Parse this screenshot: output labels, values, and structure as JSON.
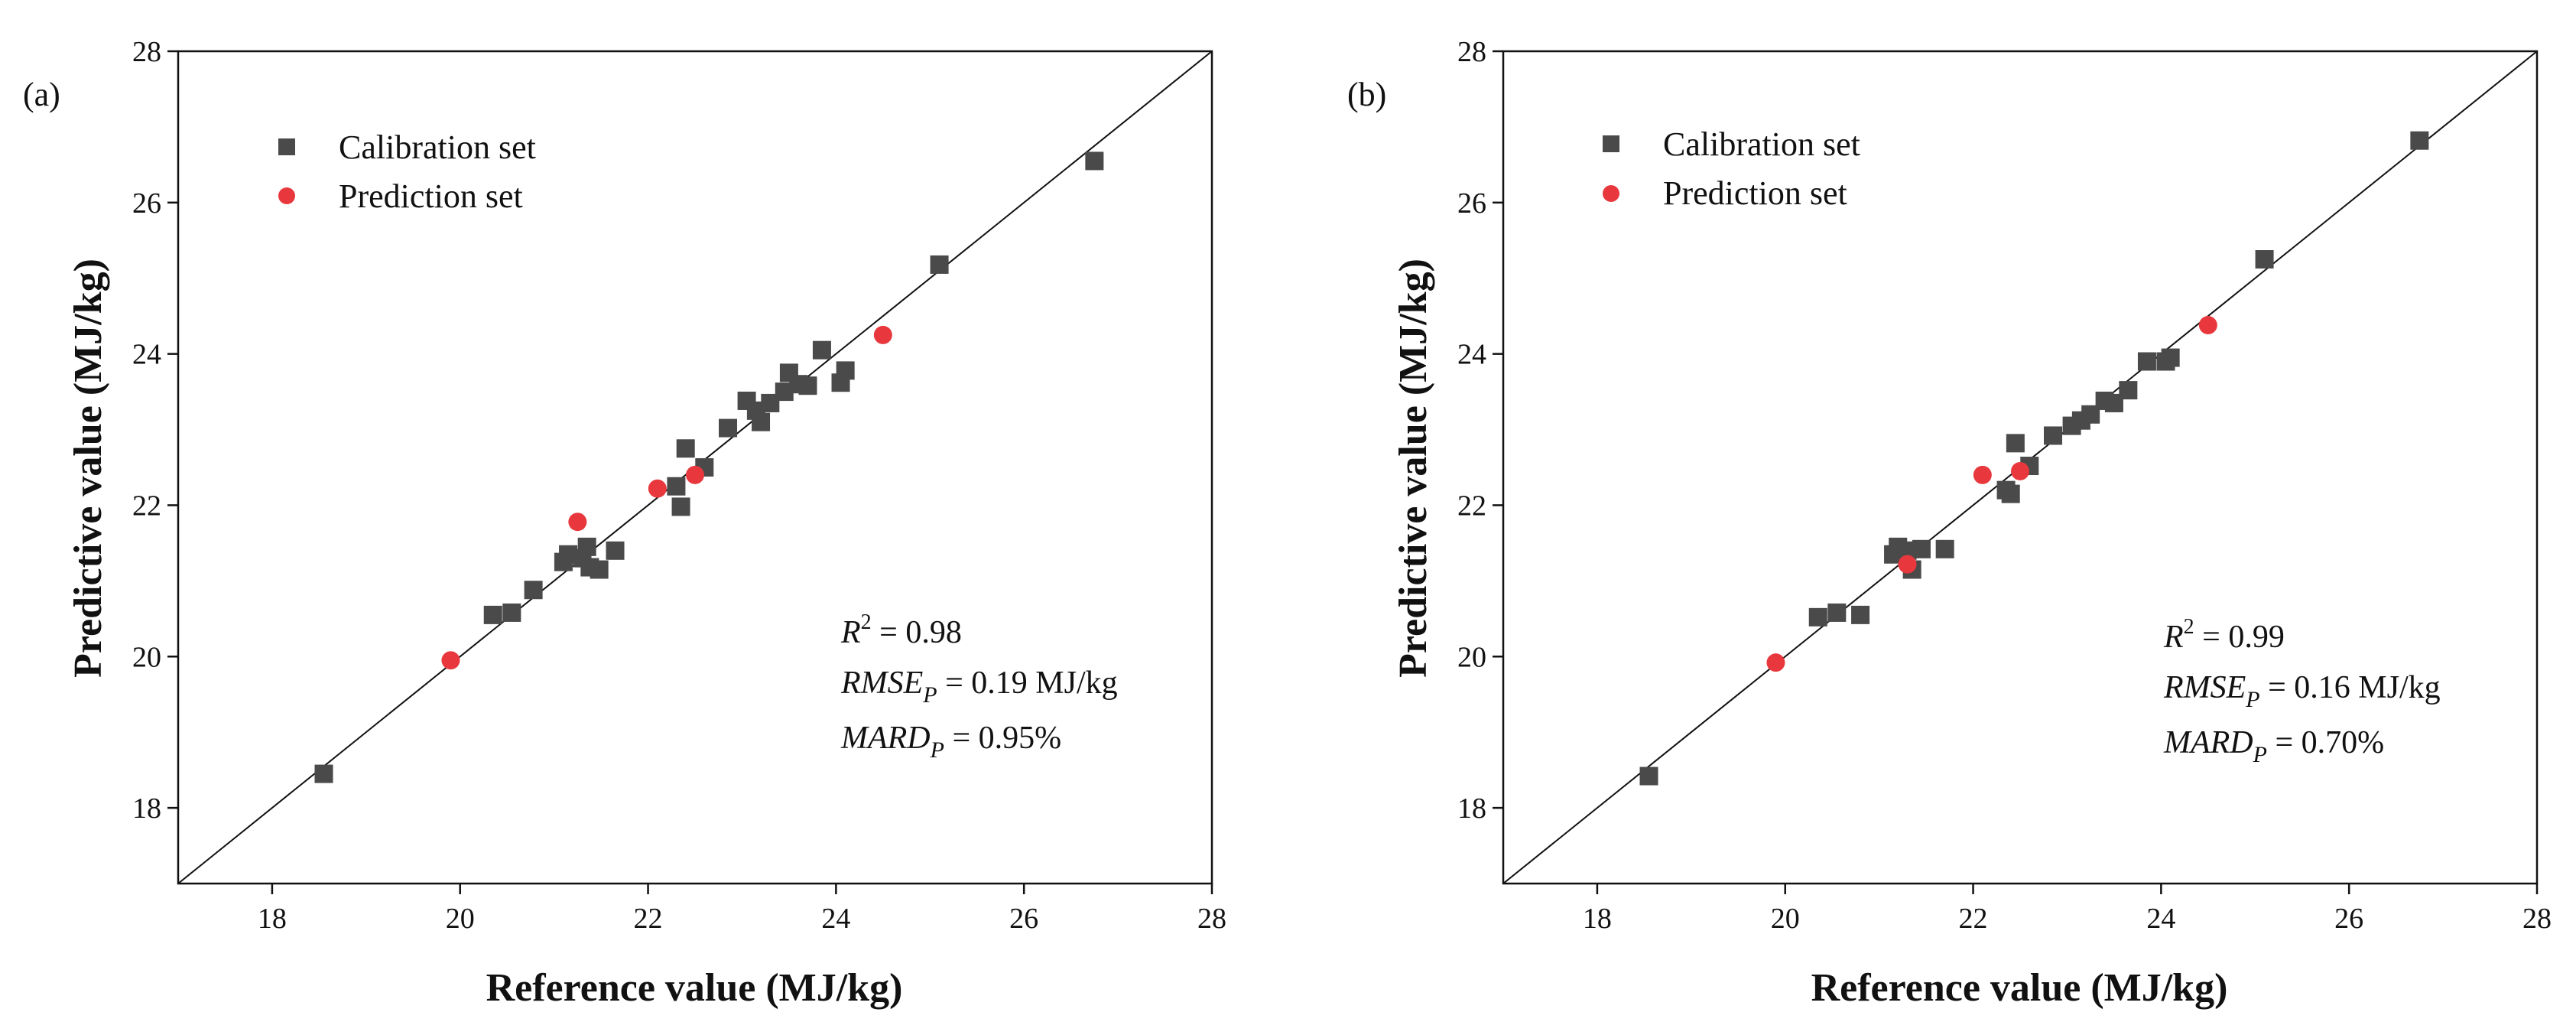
{
  "figure": {
    "panels": [
      {
        "label": "(a)",
        "legend": {
          "calibration": "Calibration set",
          "prediction": "Prediction set"
        },
        "stats": {
          "r2": {
            "symbol": "R",
            "sup": "2",
            "rest": " = 0.98"
          },
          "rmse": {
            "symbol": "RMSE",
            "sub": "P",
            "rest": " = 0.19 MJ/kg"
          },
          "mard": {
            "symbol": "MARD",
            "sub": "P",
            "rest": " = 0.95%"
          }
        }
      },
      {
        "label": "(b)",
        "legend": {
          "calibration": "Calibration set",
          "prediction": "Prediction set"
        },
        "stats": {
          "r2": {
            "symbol": "R",
            "sup": "2",
            "rest": " = 0.99"
          },
          "rmse": {
            "symbol": "RMSE",
            "sub": "P",
            "rest": " = 0.16 MJ/kg"
          },
          "mard": {
            "symbol": "MARD",
            "sub": "P",
            "rest": " = 0.70%"
          }
        }
      }
    ]
  },
  "colors": {
    "calibration": "#4a4a4a",
    "prediction": "#e8383d",
    "axis": "#111111",
    "line": "#111111"
  },
  "chart_data": [
    {
      "type": "scatter",
      "title": "(a)",
      "xlabel": "Reference value (MJ/kg)",
      "ylabel": "Predictive value (MJ/kg)",
      "xlim": [
        17,
        28
      ],
      "ylim": [
        17,
        28
      ],
      "xticks": [
        18,
        20,
        22,
        24,
        26,
        28
      ],
      "yticks": [
        18,
        20,
        22,
        24,
        26,
        28
      ],
      "reference_line": "y = x",
      "legend_position": "top-left",
      "series": [
        {
          "name": "Calibration set",
          "marker": "square",
          "points": [
            [
              18.55,
              18.45
            ],
            [
              20.35,
              20.55
            ],
            [
              20.55,
              20.58
            ],
            [
              20.78,
              20.88
            ],
            [
              21.1,
              21.25
            ],
            [
              21.15,
              21.35
            ],
            [
              21.3,
              21.3
            ],
            [
              21.35,
              21.45
            ],
            [
              21.38,
              21.18
            ],
            [
              21.48,
              21.15
            ],
            [
              21.65,
              21.4
            ],
            [
              22.3,
              22.25
            ],
            [
              22.35,
              21.98
            ],
            [
              22.4,
              22.75
            ],
            [
              22.6,
              22.5
            ],
            [
              22.85,
              23.02
            ],
            [
              23.05,
              23.38
            ],
            [
              23.15,
              23.25
            ],
            [
              23.2,
              23.1
            ],
            [
              23.3,
              23.35
            ],
            [
              23.45,
              23.5
            ],
            [
              23.5,
              23.75
            ],
            [
              23.6,
              23.6
            ],
            [
              23.7,
              23.58
            ],
            [
              23.85,
              24.05
            ],
            [
              24.05,
              23.62
            ],
            [
              24.1,
              23.78
            ],
            [
              25.1,
              25.18
            ],
            [
              26.75,
              26.55
            ]
          ]
        },
        {
          "name": "Prediction set",
          "marker": "circle",
          "points": [
            [
              19.9,
              19.95
            ],
            [
              21.25,
              21.78
            ],
            [
              22.1,
              22.22
            ],
            [
              22.5,
              22.4
            ],
            [
              24.5,
              24.25
            ]
          ]
        }
      ]
    },
    {
      "type": "scatter",
      "title": "(b)",
      "xlabel": "Reference value (MJ/kg)",
      "ylabel": "Predictive value (MJ/kg)",
      "xlim": [
        17,
        28
      ],
      "ylim": [
        17,
        28
      ],
      "xticks": [
        18,
        20,
        22,
        24,
        26,
        28
      ],
      "yticks": [
        18,
        20,
        22,
        24,
        26,
        28
      ],
      "reference_line": "y = x",
      "legend_position": "top-left",
      "series": [
        {
          "name": "Calibration set",
          "marker": "square",
          "points": [
            [
              18.55,
              18.42
            ],
            [
              20.35,
              20.52
            ],
            [
              20.55,
              20.58
            ],
            [
              20.8,
              20.55
            ],
            [
              21.15,
              21.35
            ],
            [
              21.2,
              21.45
            ],
            [
              21.3,
              21.4
            ],
            [
              21.35,
              21.15
            ],
            [
              21.45,
              21.42
            ],
            [
              21.7,
              21.42
            ],
            [
              22.35,
              22.2
            ],
            [
              22.4,
              22.15
            ],
            [
              22.45,
              22.82
            ],
            [
              22.6,
              22.52
            ],
            [
              22.85,
              22.92
            ],
            [
              23.05,
              23.05
            ],
            [
              23.15,
              23.12
            ],
            [
              23.25,
              23.2
            ],
            [
              23.4,
              23.38
            ],
            [
              23.5,
              23.35
            ],
            [
              23.65,
              23.52
            ],
            [
              23.85,
              23.9
            ],
            [
              24.05,
              23.9
            ],
            [
              24.1,
              23.95
            ],
            [
              25.1,
              25.25
            ],
            [
              26.75,
              26.82
            ]
          ]
        },
        {
          "name": "Prediction set",
          "marker": "circle",
          "points": [
            [
              19.9,
              19.92
            ],
            [
              21.3,
              21.22
            ],
            [
              22.1,
              22.4
            ],
            [
              22.5,
              22.45
            ],
            [
              24.5,
              24.38
            ]
          ]
        }
      ]
    }
  ]
}
